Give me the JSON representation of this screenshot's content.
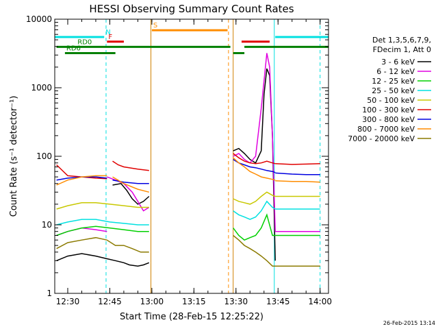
{
  "chart_data": {
    "type": "line",
    "title": "HESSI Observing Summary Count Rates",
    "xlabel": "Start Time (28-Feb-15 12:25:22)",
    "ylabel": "Count Rate (s⁻¹ detector⁻¹)",
    "yscale": "log",
    "xlim": [
      "12:25:22",
      "14:03:00"
    ],
    "ylim": [
      1,
      10000
    ],
    "x_ticks": [
      "12:30",
      "12:45",
      "13:00",
      "13:15",
      "13:30",
      "13:45",
      "14:00"
    ],
    "y_ticks": [
      "1",
      "10",
      "100",
      "1000",
      "10000"
    ],
    "footer": "26-Feb-2015 13:14",
    "legend": {
      "placement": "right",
      "header": [
        "Det 1,3,5,6,7,9,",
        "FDecim 1, Att 0"
      ]
    },
    "series": [
      {
        "name": "3 - 6 keV",
        "color": "#000000",
        "segments": [
          {
            "x": [
              "12:26",
              "12:30",
              "12:35",
              "12:40",
              "12:44",
              "12:47",
              "12:50",
              "12:52",
              "12:55",
              "12:57",
              "12:59"
            ],
            "y": [
              3,
              3.5,
              3.8,
              3.5,
              3.2,
              3,
              2.8,
              2.6,
              2.5,
              2.6,
              2.8
            ]
          },
          {
            "x": [
              "12:46",
              "12:49",
              "12:51",
              "12:53",
              "12:55",
              "12:57",
              "12:59"
            ],
            "y": [
              38,
              40,
              32,
              24,
              20,
              22,
              26
            ]
          },
          {
            "x": [
              "13:29",
              "13:31",
              "13:33",
              "13:35",
              "13:37",
              "13:39",
              "13:40",
              "13:41",
              "13:42",
              "13:43",
              "13:44"
            ],
            "y": [
              120,
              130,
              110,
              90,
              80,
              120,
              800,
              1900,
              1500,
              200,
              3
            ]
          },
          {
            "x": [
              "13:44",
              "13:50",
              "13:55",
              "14:00"
            ],
            "y": [
              2.5,
              2.5,
              2.5,
              2.5
            ]
          }
        ]
      },
      {
        "name": "6 - 12 keV",
        "color": "#e000e0",
        "segments": [
          {
            "x": [
              "12:26",
              "12:30",
              "12:35",
              "12:40",
              "12:44"
            ],
            "y": [
              7,
              8,
              9,
              8.5,
              8
            ]
          },
          {
            "x": [
              "12:44",
              "12:47",
              "12:50",
              "12:53",
              "12:55",
              "12:57",
              "12:59"
            ],
            "y": [
              50,
              45,
              40,
              30,
              22,
              16,
              18
            ]
          },
          {
            "x": [
              "13:29",
              "13:31",
              "13:33",
              "13:35",
              "13:37",
              "13:39",
              "13:41",
              "13:42",
              "13:43",
              "13:44"
            ],
            "y": [
              100,
              110,
              90,
              80,
              100,
              500,
              3200,
              2000,
              200,
              8
            ]
          },
          {
            "x": [
              "13:44",
              "13:50",
              "13:55",
              "14:00"
            ],
            "y": [
              8,
              8,
              8,
              8
            ]
          }
        ]
      },
      {
        "name": "12 - 25 keV",
        "color": "#00d000",
        "segments": [
          {
            "x": [
              "12:26",
              "12:30",
              "12:35",
              "12:40",
              "12:45",
              "12:50",
              "12:55",
              "12:59"
            ],
            "y": [
              7,
              8,
              9,
              9.5,
              9,
              8.5,
              8,
              8
            ]
          },
          {
            "x": [
              "13:29",
              "13:31",
              "13:33",
              "13:35",
              "13:37",
              "13:39",
              "13:41",
              "13:43",
              "13:44"
            ],
            "y": [
              9,
              7,
              6,
              6.5,
              7,
              9,
              14,
              7,
              7
            ]
          },
          {
            "x": [
              "13:44",
              "13:50",
              "13:55",
              "14:00"
            ],
            "y": [
              7,
              7,
              7,
              7
            ]
          }
        ]
      },
      {
        "name": "25 - 50 keV",
        "color": "#00e0e0",
        "segments": [
          {
            "x": [
              "12:26",
              "12:30",
              "12:35",
              "12:40",
              "12:45",
              "12:50",
              "12:55",
              "12:59"
            ],
            "y": [
              10,
              11,
              12,
              12,
              11,
              10.5,
              10,
              10
            ]
          },
          {
            "x": [
              "13:29",
              "13:31",
              "13:33",
              "13:35",
              "13:37",
              "13:39",
              "13:41",
              "13:43",
              "13:44"
            ],
            "y": [
              16,
              14,
              13,
              12,
              13,
              16,
              22,
              18,
              17
            ]
          },
          {
            "x": [
              "13:44",
              "13:50",
              "13:55",
              "14:00"
            ],
            "y": [
              17,
              17,
              17,
              17
            ]
          }
        ]
      },
      {
        "name": "50 - 100 keV",
        "color": "#c8c800",
        "segments": [
          {
            "x": [
              "12:26",
              "12:30",
              "12:35",
              "12:40",
              "12:45",
              "12:50",
              "12:55",
              "12:59"
            ],
            "y": [
              17,
              19,
              21,
              21,
              20,
              19,
              18,
              18
            ]
          },
          {
            "x": [
              "13:29",
              "13:31",
              "13:33",
              "13:35",
              "13:37",
              "13:39",
              "13:41",
              "13:43",
              "13:44"
            ],
            "y": [
              24,
              22,
              21,
              20,
              22,
              26,
              30,
              27,
              26
            ]
          },
          {
            "x": [
              "13:44",
              "13:50",
              "13:55",
              "14:00"
            ],
            "y": [
              26,
              26,
              26,
              26
            ]
          }
        ]
      },
      {
        "name": "100 - 300 keV",
        "color": "#e00000",
        "segments": [
          {
            "x": [
              "12:26",
              "12:30",
              "12:35",
              "12:40",
              "12:44"
            ],
            "y": [
              75,
              52,
              50,
              48,
              47
            ]
          },
          {
            "x": [
              "12:46",
              "12:48",
              "12:50",
              "12:55",
              "12:59"
            ],
            "y": [
              85,
              75,
              70,
              65,
              62
            ]
          },
          {
            "x": [
              "13:29",
              "13:31",
              "13:33",
              "13:35",
              "13:37",
              "13:39",
              "13:41",
              "13:43",
              "13:44"
            ],
            "y": [
              110,
              95,
              85,
              80,
              78,
              80,
              85,
              80,
              78
            ]
          },
          {
            "x": [
              "13:44",
              "13:50",
              "13:55",
              "14:00"
            ],
            "y": [
              78,
              76,
              77,
              78
            ]
          }
        ]
      },
      {
        "name": "300 - 800 keV",
        "color": "#0000e0",
        "segments": [
          {
            "x": [
              "12:26",
              "12:30",
              "12:35",
              "12:40",
              "12:44"
            ],
            "y": [
              45,
              48,
              50,
              50,
              48
            ]
          },
          {
            "x": [
              "12:46",
              "12:50",
              "12:55",
              "12:59"
            ],
            "y": [
              45,
              42,
              40,
              40
            ]
          },
          {
            "x": [
              "13:29",
              "13:31",
              "13:33",
              "13:35",
              "13:37",
              "13:39",
              "13:41",
              "13:43",
              "13:44"
            ],
            "y": [
              90,
              80,
              75,
              70,
              68,
              65,
              62,
              60,
              58
            ]
          },
          {
            "x": [
              "13:44",
              "13:50",
              "13:55",
              "14:00"
            ],
            "y": [
              57,
              55,
              54,
              54
            ]
          }
        ]
      },
      {
        "name": "800 - 7000 keV",
        "color": "#ff8c00",
        "segments": [
          {
            "x": [
              "12:26",
              "12:30",
              "12:35",
              "12:40",
              "12:44"
            ],
            "y": [
              38,
              45,
              50,
              52,
              52
            ]
          },
          {
            "x": [
              "12:46",
              "12:50",
              "12:55",
              "12:59"
            ],
            "y": [
              50,
              40,
              33,
              30
            ]
          },
          {
            "x": [
              "13:29",
              "13:31",
              "13:33",
              "13:35",
              "13:37",
              "13:39",
              "13:41",
              "13:43",
              "13:44"
            ],
            "y": [
              95,
              80,
              70,
              60,
              55,
              50,
              48,
              46,
              45
            ]
          },
          {
            "x": [
              "13:44",
              "13:50",
              "13:55",
              "14:00"
            ],
            "y": [
              44,
              43,
              43,
              42
            ]
          }
        ]
      },
      {
        "name": "7000 - 20000 keV",
        "color": "#8b7a00",
        "segments": [
          {
            "x": [
              "12:26",
              "12:30",
              "12:35",
              "12:40",
              "12:44"
            ],
            "y": [
              4.5,
              5.5,
              6,
              6.5,
              6
            ]
          },
          {
            "x": [
              "12:44",
              "12:47",
              "12:50",
              "12:53",
              "12:56",
              "12:59"
            ],
            "y": [
              6,
              5,
              5,
              4.5,
              4,
              4
            ]
          },
          {
            "x": [
              "13:29",
              "13:31",
              "13:33",
              "13:35",
              "13:37",
              "13:39",
              "13:41",
              "13:43",
              "13:44"
            ],
            "y": [
              7,
              6,
              5,
              4.5,
              4,
              3.5,
              3,
              2.5,
              2.5
            ]
          },
          {
            "x": [
              "13:44",
              "13:50",
              "13:55",
              "14:00"
            ],
            "y": [
              2.5,
              2.5,
              2.5,
              2.5
            ]
          }
        ]
      }
    ],
    "annotations": [
      {
        "label": "N",
        "color": "#00e0e0",
        "y": 5500,
        "segments": [
          [
            "12:25:22",
            "12:43"
          ],
          [
            "13:44",
            "14:03"
          ]
        ],
        "label_x": "12:43"
      },
      {
        "label": "F",
        "color": "#e00000",
        "y": 4700,
        "segments": [
          [
            "12:44",
            "12:50"
          ],
          [
            "13:32",
            "13:42"
          ]
        ],
        "label_x": "12:44"
      },
      {
        "label": "S",
        "color": "#ff8c00",
        "y": 6900,
        "segments": [
          [
            "13:00",
            "13:27"
          ]
        ],
        "label_x": "13:00"
      },
      {
        "label": "RD0",
        "color": "#008000",
        "y": 3950,
        "segments": [
          [
            "12:26",
            "13:28"
          ],
          [
            "13:33",
            "14:03"
          ]
        ],
        "label_x": "12:33"
      },
      {
        "label": "RD6",
        "color": "#008000",
        "y": 3200,
        "segments": [
          [
            "12:29",
            "12:47"
          ],
          [
            "13:29",
            "13:33"
          ]
        ],
        "label_x": "12:29"
      }
    ],
    "vlines": [
      {
        "x": "12:25:22",
        "color": "#00e0e0",
        "style": "solid"
      },
      {
        "x": "12:43:40",
        "color": "#00e0e0",
        "style": "dashed"
      },
      {
        "x": "12:59:40",
        "color": "#d08000",
        "style": "solid"
      },
      {
        "x": "13:27:20",
        "color": "#ff8c00",
        "style": "dashed"
      },
      {
        "x": "13:29:00",
        "color": "#d08000",
        "style": "solid"
      },
      {
        "x": "13:43:40",
        "color": "#00e0e0",
        "style": "solid"
      },
      {
        "x": "14:00:00",
        "color": "#00e0e0",
        "style": "dashed"
      }
    ]
  }
}
